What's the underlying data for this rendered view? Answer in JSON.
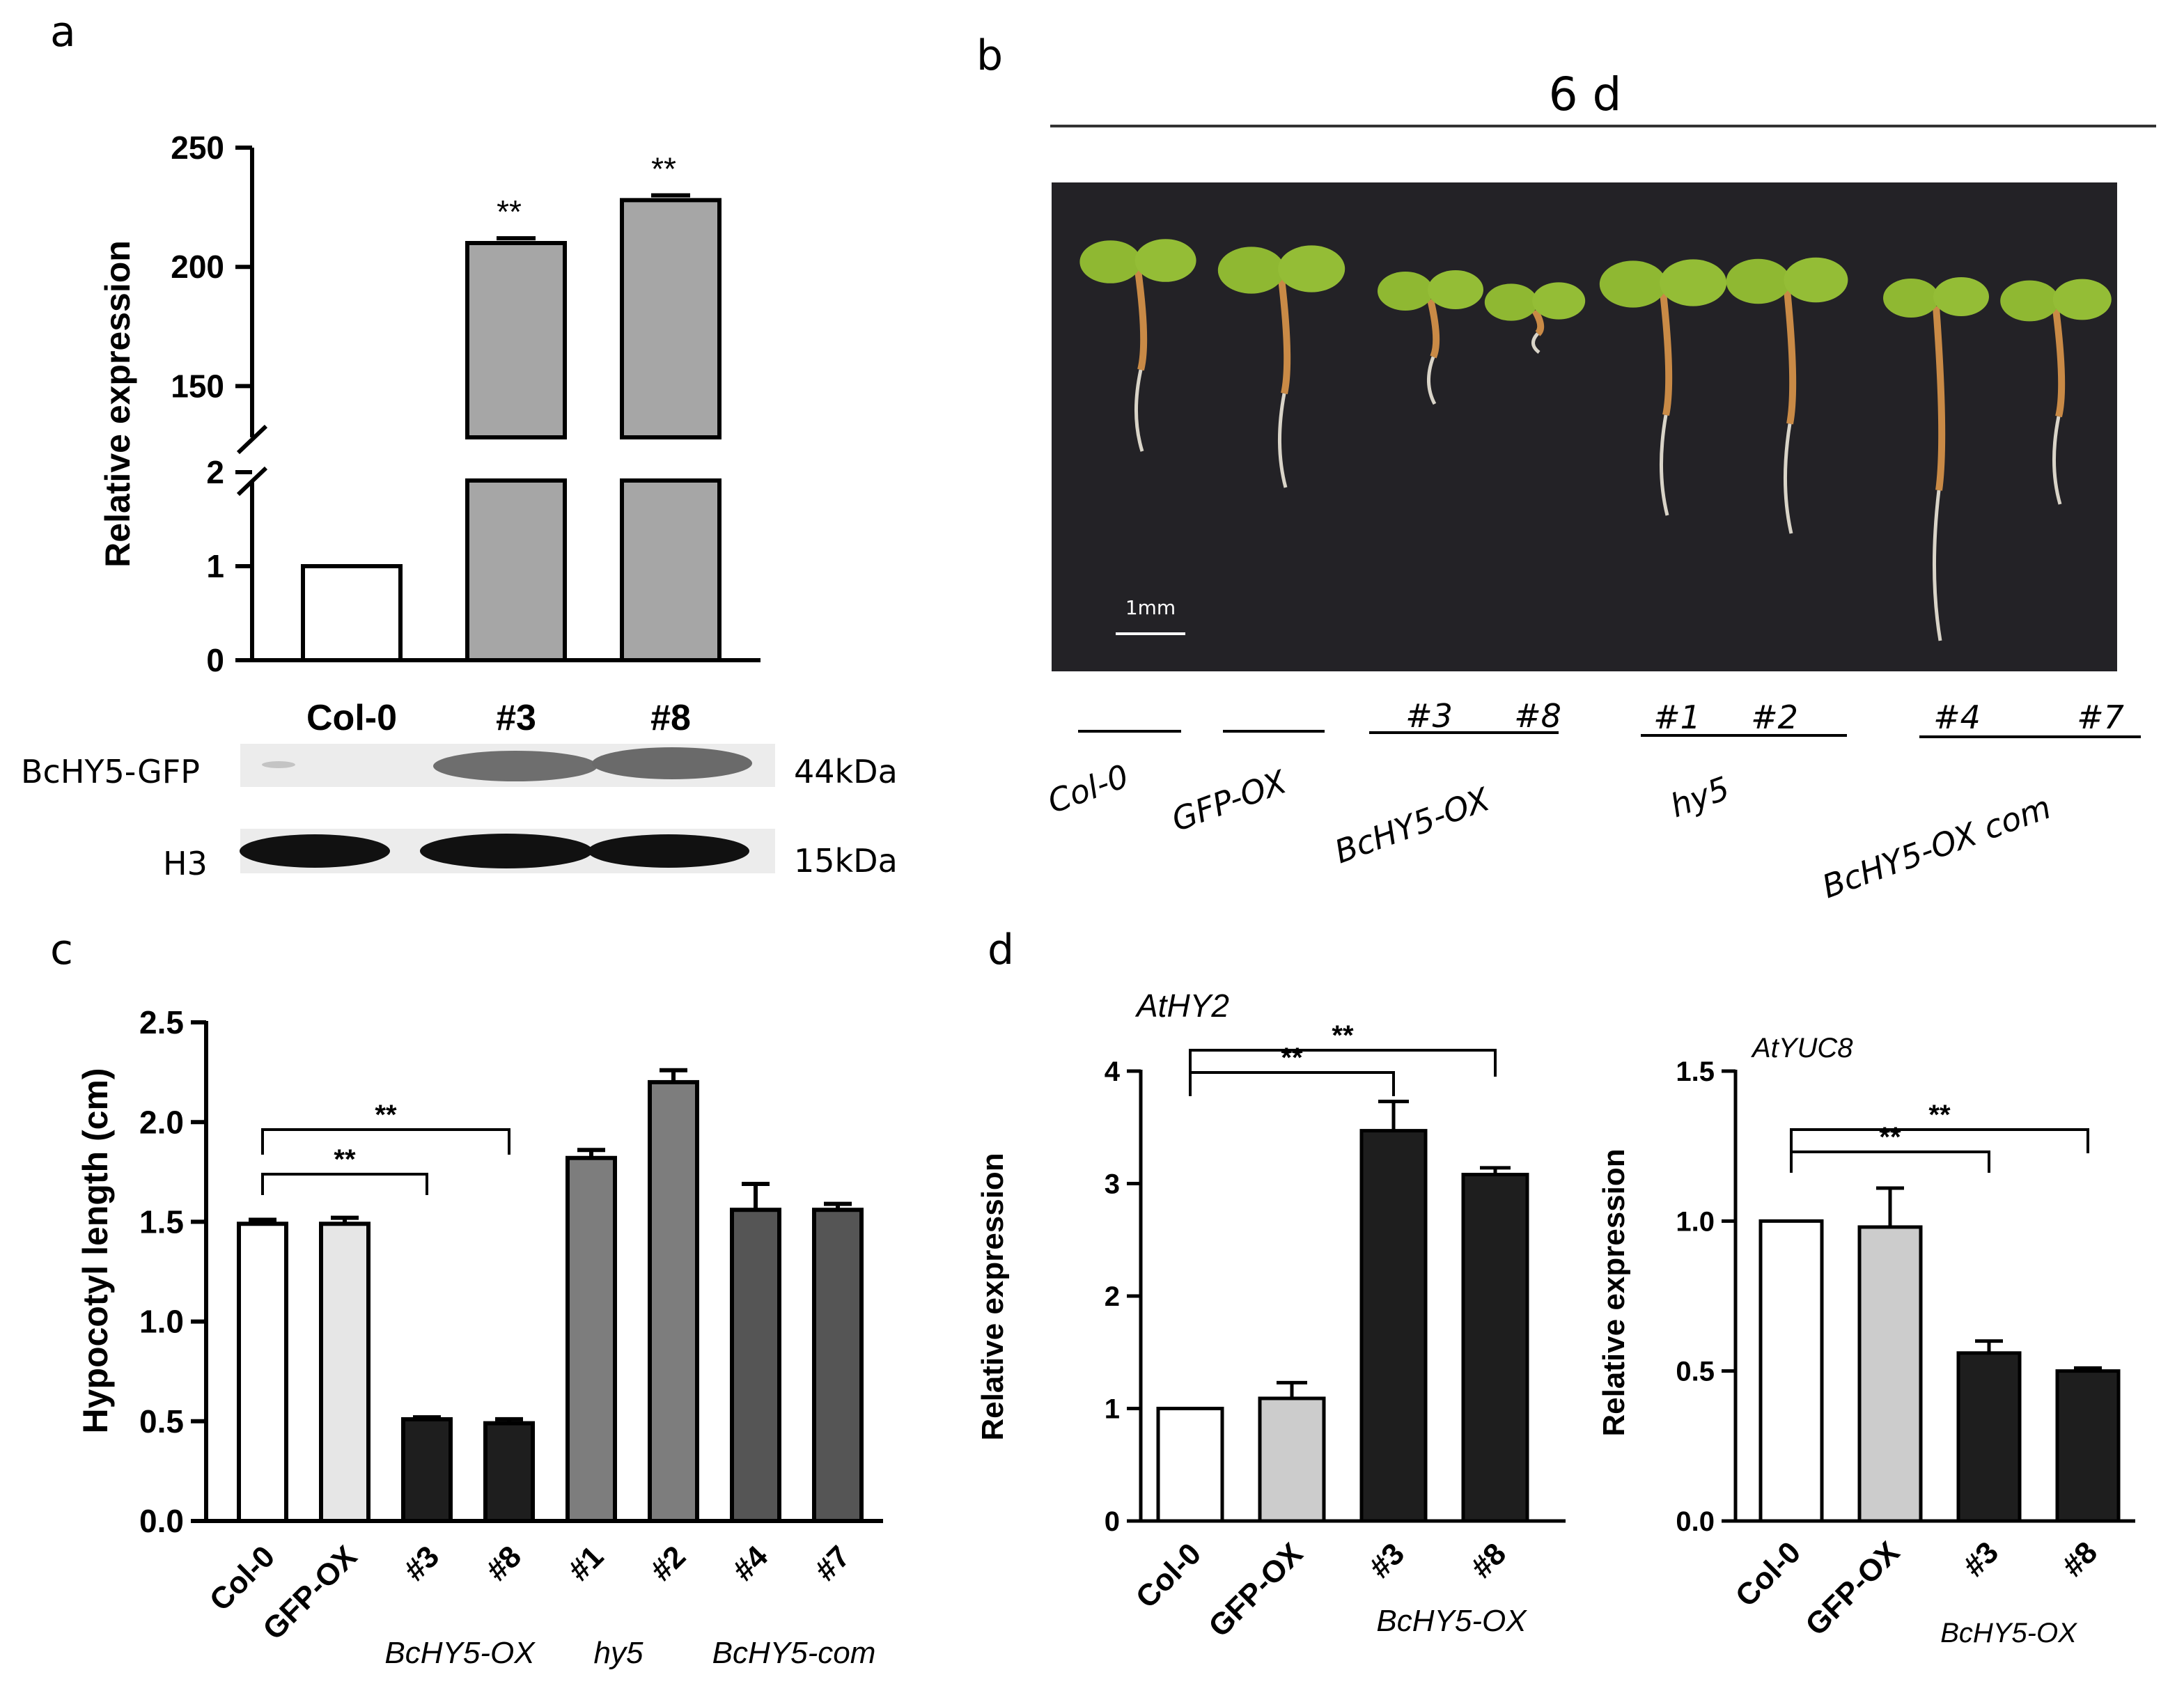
{
  "panels": {
    "a": {
      "label": "a",
      "ylabel": "Relative expression",
      "sig": "**",
      "blot": {
        "rows": [
          {
            "name": "BcHY5-GFP",
            "size": "44kDa"
          },
          {
            "name": "H3",
            "size": "15kDa"
          }
        ]
      }
    },
    "b": {
      "label": "b",
      "days": "6 d",
      "scale_bar": "1mm",
      "genotypes": [
        {
          "name": "Col-0",
          "lines": []
        },
        {
          "name": "GFP-OX",
          "lines": []
        },
        {
          "name": "BcHY5-OX",
          "lines": [
            "#3",
            "#8"
          ]
        },
        {
          "name": "hy5",
          "lines": [
            "#1",
            "#2"
          ]
        },
        {
          "name": "BcHY5-OX com",
          "lines": [
            "#4",
            "#7"
          ]
        }
      ]
    },
    "c": {
      "label": "c",
      "groups": [
        {
          "name": "BcHY5-OX"
        },
        {
          "name": "hy5"
        },
        {
          "name": "BcHY5-com"
        }
      ]
    },
    "d": {
      "label": "d",
      "groups": [
        {
          "name": "BcHY5-OX"
        },
        {
          "name": "BcHY5-OX"
        }
      ]
    }
  },
  "chart_data": [
    {
      "id": "a",
      "type": "bar",
      "ylabel": "Relative expression",
      "categories": [
        "Col-0",
        "#3",
        "#8"
      ],
      "values": [
        1,
        210,
        228
      ],
      "errors": [
        0,
        2,
        2
      ],
      "ylim": [
        0,
        250
      ],
      "axis_break": {
        "lower": [
          0,
          2
        ],
        "upper": [
          125,
          250
        ]
      },
      "yticks_lower": [
        0,
        1,
        2
      ],
      "yticks_upper": [
        150,
        200,
        250
      ],
      "colors": [
        "#ffffff",
        "#a6a6a6",
        "#a6a6a6"
      ],
      "annotations": [
        "",
        "**",
        "**"
      ]
    },
    {
      "id": "c",
      "type": "bar",
      "ylabel": "Hypocotyl length (cm)",
      "categories": [
        "Col-0",
        "GFP-OX",
        "#3",
        "#8",
        "#1",
        "#2",
        "#4",
        "#7"
      ],
      "values": [
        1.49,
        1.49,
        0.51,
        0.49,
        1.82,
        2.2,
        1.56,
        1.56
      ],
      "errors": [
        0.02,
        0.03,
        0.01,
        0.02,
        0.04,
        0.06,
        0.13,
        0.03
      ],
      "ylim": [
        0,
        2.5
      ],
      "yticks": [
        "0.0",
        "0.5",
        "1.0",
        "1.5",
        "2.0",
        "2.5"
      ],
      "colors": [
        "#ffffff",
        "#e6e6e6",
        "#1e1e1e",
        "#1e1e1e",
        "#7d7d7d",
        "#7d7d7d",
        "#555555",
        "#555555"
      ],
      "significance": [
        {
          "from": "Col-0",
          "to": "#3",
          "label": "**"
        },
        {
          "from": "Col-0",
          "to": "#8",
          "label": "**"
        }
      ]
    },
    {
      "id": "d1",
      "type": "bar",
      "title": "AtHY2",
      "ylabel": "Relative expression",
      "categories": [
        "Col-0",
        "GFP-OX",
        "#3",
        "#8"
      ],
      "values": [
        1.0,
        1.09,
        3.47,
        3.08
      ],
      "errors": [
        0,
        0.14,
        0.26,
        0.06
      ],
      "ylim": [
        0,
        4
      ],
      "yticks": [
        "0",
        "1",
        "2",
        "3",
        "4"
      ],
      "colors": [
        "#ffffff",
        "#cccccc",
        "#1e1e1e",
        "#1e1e1e"
      ],
      "significance": [
        {
          "from": "Col-0",
          "to": "#3",
          "label": "**"
        },
        {
          "from": "Col-0",
          "to": "#8",
          "label": "**"
        }
      ]
    },
    {
      "id": "d2",
      "type": "bar",
      "title": "AtYUC8",
      "ylabel": "Relative expression",
      "categories": [
        "Col-0",
        "GFP-OX",
        "#3",
        "#8"
      ],
      "values": [
        1.0,
        0.98,
        0.56,
        0.5
      ],
      "errors": [
        0,
        0.13,
        0.04,
        0.01
      ],
      "ylim": [
        0,
        1.5
      ],
      "yticks": [
        "0.0",
        "0.5",
        "1.0",
        "1.5"
      ],
      "colors": [
        "#ffffff",
        "#cccccc",
        "#1e1e1e",
        "#1e1e1e"
      ],
      "significance": [
        {
          "from": "Col-0",
          "to": "#3",
          "label": "**"
        },
        {
          "from": "Col-0",
          "to": "#8",
          "label": "**"
        }
      ]
    }
  ]
}
